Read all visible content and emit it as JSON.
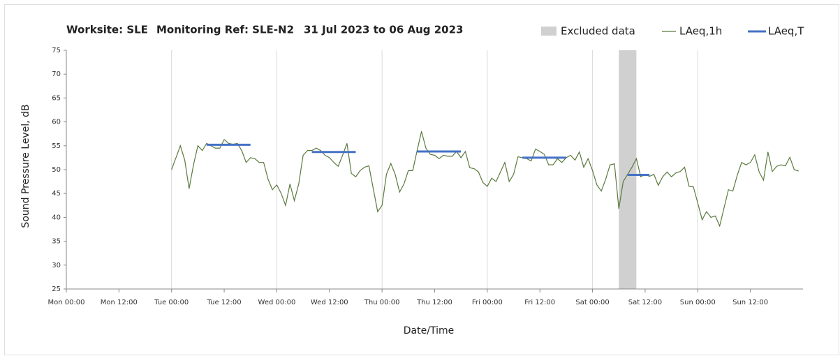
{
  "chart_data": {
    "type": "line",
    "title": [
      "Worksite: SLE",
      "Monitoring Ref: SLE-N2",
      "31 Jul 2023 to 06 Aug 2023"
    ],
    "xlabel": "Date/Time",
    "ylabel": "Sound Pressure Level, dB",
    "xlim": [
      0,
      168
    ],
    "xticks": [
      {
        "value": 0,
        "label": "Mon 00:00"
      },
      {
        "value": 12,
        "label": "Mon 12:00"
      },
      {
        "value": 24,
        "label": "Tue 00:00"
      },
      {
        "value": 36,
        "label": "Tue 12:00"
      },
      {
        "value": 48,
        "label": "Wed 00:00"
      },
      {
        "value": 60,
        "label": "Wed 12:00"
      },
      {
        "value": 72,
        "label": "Thu 00:00"
      },
      {
        "value": 84,
        "label": "Thu 12:00"
      },
      {
        "value": 96,
        "label": "Fri 00:00"
      },
      {
        "value": 108,
        "label": "Fri 12:00"
      },
      {
        "value": 120,
        "label": "Sat 00:00"
      },
      {
        "value": 132,
        "label": "Sat 12:00"
      },
      {
        "value": 144,
        "label": "Sun 00:00"
      },
      {
        "value": 156,
        "label": "Sun 12:00"
      }
    ],
    "ylim": [
      25,
      75
    ],
    "yticks": [
      25,
      30,
      35,
      40,
      45,
      50,
      55,
      60,
      65,
      70,
      75
    ],
    "excluded": {
      "name": "Excluded data",
      "color": "#d0d0d0",
      "start": 126,
      "end": 130
    },
    "series": [
      {
        "name": "LAeq,1h",
        "color": "#5b7a3e",
        "x": [
          24,
          25,
          26,
          27,
          28,
          29,
          30,
          31,
          32,
          33,
          34,
          35,
          36,
          37,
          38,
          39,
          40,
          41,
          42,
          43,
          44,
          45,
          46,
          47,
          48,
          49,
          50,
          51,
          52,
          53,
          54,
          55,
          56,
          57,
          58,
          59,
          60,
          61,
          62,
          63,
          64,
          65,
          66,
          67,
          68,
          69,
          70,
          71,
          72,
          73,
          74,
          75,
          76,
          77,
          78,
          79,
          80,
          81,
          82,
          83,
          84,
          85,
          86,
          87,
          88,
          89,
          90,
          91,
          92,
          93,
          94,
          95,
          96,
          97,
          98,
          99,
          100,
          101,
          102,
          103,
          104,
          105,
          106,
          107,
          108,
          109,
          110,
          111,
          112,
          113,
          114,
          115,
          116,
          117,
          118,
          119,
          120,
          121,
          122,
          123,
          124,
          125,
          126,
          127,
          128,
          129,
          130,
          131,
          132,
          133,
          134,
          135,
          136,
          137,
          138,
          139,
          140,
          141,
          142,
          143,
          144,
          145,
          146,
          147,
          148,
          149,
          150,
          151,
          152,
          153,
          154,
          155,
          156,
          157,
          158,
          159,
          160,
          161,
          162,
          163,
          164,
          165,
          166,
          167
        ],
        "values": [
          50,
          52.5,
          55,
          52,
          46,
          51,
          55,
          54,
          55.5,
          55,
          54.5,
          54.5,
          56.3,
          55.5,
          55.3,
          55.5,
          54,
          51.5,
          52.5,
          52.3,
          51.5,
          51.5,
          48,
          45.8,
          46.8,
          45,
          42.5,
          47,
          43.5,
          47,
          53,
          54,
          54,
          54.5,
          54,
          53,
          52.5,
          51.5,
          50.7,
          53,
          55.5,
          49.2,
          48.5,
          49.8,
          50.5,
          50.8,
          46,
          41.2,
          42.5,
          49,
          51.3,
          49,
          45.3,
          47,
          49.8,
          49.8,
          54,
          58,
          54.5,
          53.2,
          53,
          52.3,
          53,
          52.8,
          52.8,
          53.8,
          52.5,
          53.8,
          50.4,
          50.2,
          49.5,
          47.3,
          46.5,
          48.2,
          47.5,
          49.5,
          51.5,
          47.5,
          49,
          52.7,
          52.5,
          52.3,
          51.8,
          54.3,
          53.8,
          53.2,
          51,
          51,
          52.3,
          51.5,
          52.5,
          53,
          52,
          53.7,
          50.5,
          52.3,
          49.8,
          46.8,
          45.5,
          48,
          51,
          51.2,
          41.8,
          47.5,
          49,
          50.5,
          52.3,
          48.5,
          49,
          48.6,
          49,
          46.7,
          48.5,
          49.5,
          48.5,
          49.3,
          49.6,
          50.5,
          46.5,
          46.4,
          43,
          39.5,
          41.2,
          40,
          40.3,
          38.2,
          42,
          45.8,
          45.5,
          48.8,
          51.5,
          51,
          51.5,
          53.1,
          49.5,
          47.8,
          53.7,
          49.6,
          50.7,
          51,
          50.8,
          52.6,
          50,
          49.7
        ]
      },
      {
        "name": "LAeq,T",
        "color": "#4472c4",
        "start": [
          32,
          56,
          80,
          104,
          128
        ],
        "end": [
          42,
          66,
          90,
          114,
          133
        ],
        "values": [
          55.2,
          53.7,
          53.8,
          52.5,
          48.9
        ]
      }
    ]
  }
}
